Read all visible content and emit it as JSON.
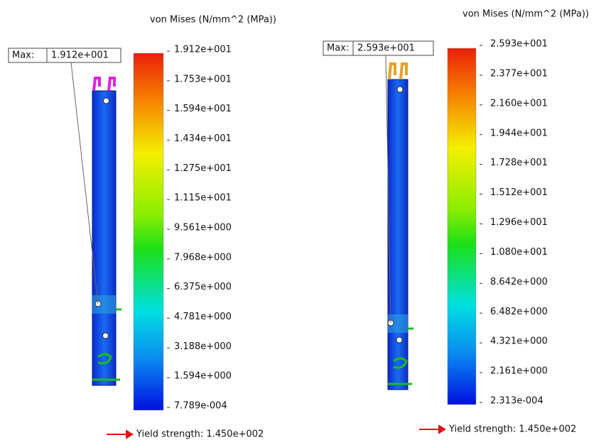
{
  "panels": [
    {
      "title": "von Mises (N/mm^2 (MPa))",
      "max_label": "Max:",
      "max_value": "1.912e+001",
      "scale_labels": [
        "1.912e+001",
        "1.753e+001",
        "1.594e+001",
        "1.434e+001",
        "1.275e+001",
        "1.115e+001",
        "9.561e+000",
        "7.968e+000",
        "6.375e+000",
        "4.781e+000",
        "3.188e+000",
        "1.594e+000",
        "7.789e-004"
      ],
      "yield": "Yield strength: 1.450e+002"
    },
    {
      "title": "von Mises (N/mm^2 (MPa))",
      "max_label": "Max:",
      "max_value": "2.593e+001",
      "scale_labels": [
        "2.593e+001",
        "2.377e+001",
        "2.160e+001",
        "1.944e+001",
        "1.728e+001",
        "1.512e+001",
        "1.296e+001",
        "1.080e+001",
        "8.642e+000",
        "6.482e+000",
        "4.321e+000",
        "2.161e+000",
        "2.313e-004"
      ],
      "yield": "Yield strength: 1.450e+002"
    }
  ]
}
